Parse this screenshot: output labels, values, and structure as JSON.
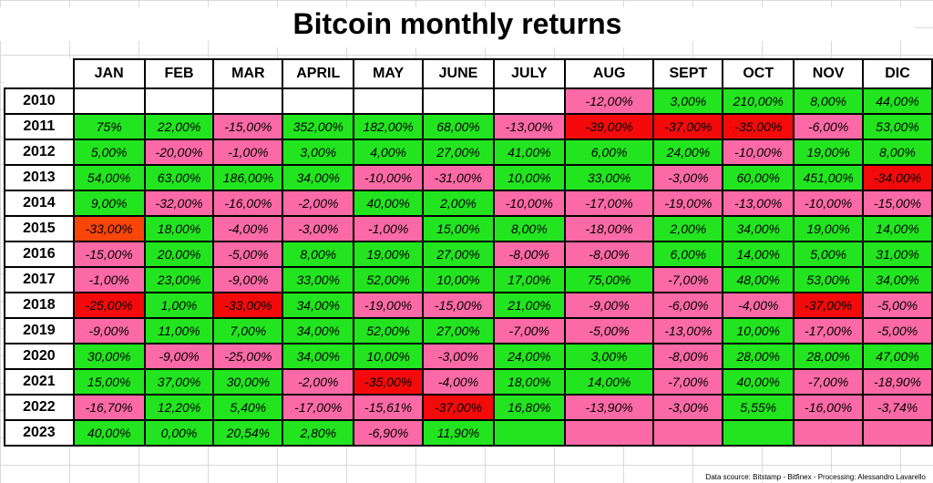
{
  "title": "Bitcoin monthly returns",
  "months": [
    "JAN",
    "FEB",
    "MAR",
    "APRIL",
    "MAY",
    "JUNE",
    "JULY",
    "AUG",
    "SEPT",
    "OCT",
    "NOV",
    "DIC"
  ],
  "colors": {
    "positive": "#22e51f",
    "negative": "#fb6aa6",
    "large_negative": "#f40a0a",
    "orange_negative": "#f8460b",
    "empty": "#ffffff"
  },
  "rows": [
    {
      "year": "2010",
      "values": [
        "",
        "",
        "",
        "",
        "",
        "",
        "",
        "-12,00%",
        "3,00%",
        "210,00%",
        "8,00%",
        "44,00%"
      ],
      "styles": [
        "emp",
        "emp",
        "emp",
        "emp",
        "emp",
        "emp",
        "emp",
        "neg",
        "pos",
        "pos",
        "pos",
        "pos"
      ]
    },
    {
      "year": "2011",
      "values": [
        "75%",
        "22,00%",
        "-15,00%",
        "352,00%",
        "182,00%",
        "68,00%",
        "-13,00%",
        "-39,00%",
        "-37,00%",
        "-35,00%",
        "-6,00%",
        "53,00%"
      ],
      "styles": [
        "pos",
        "pos",
        "neg",
        "pos",
        "pos",
        "pos",
        "neg",
        "big",
        "big",
        "big",
        "neg",
        "pos"
      ]
    },
    {
      "year": "2012",
      "values": [
        "5,00%",
        "-20,00%",
        "-1,00%",
        "3,00%",
        "4,00%",
        "27,00%",
        "41,00%",
        "6,00%",
        "24,00%",
        "-10,00%",
        "19,00%",
        "8,00%"
      ],
      "styles": [
        "pos",
        "neg",
        "neg",
        "pos",
        "pos",
        "pos",
        "pos",
        "pos",
        "pos",
        "neg",
        "pos",
        "pos"
      ]
    },
    {
      "year": "2013",
      "values": [
        "54,00%",
        "63,00%",
        "186,00%",
        "34,00%",
        "-10,00%",
        "-31,00%",
        "10,00%",
        "33,00%",
        "-3,00%",
        "60,00%",
        "451,00%",
        "-34,00%"
      ],
      "styles": [
        "pos",
        "pos",
        "pos",
        "pos",
        "neg",
        "neg",
        "pos",
        "pos",
        "neg",
        "pos",
        "pos",
        "big"
      ]
    },
    {
      "year": "2014",
      "values": [
        "9,00%",
        "-32,00%",
        "-16,00%",
        "-2,00%",
        "40,00%",
        "2,00%",
        "-10,00%",
        "-17,00%",
        "-19,00%",
        "-13,00%",
        "-10,00%",
        "-15,00%"
      ],
      "styles": [
        "pos",
        "neg",
        "neg",
        "neg",
        "pos",
        "pos",
        "neg",
        "neg",
        "neg",
        "neg",
        "neg",
        "neg"
      ]
    },
    {
      "year": "2015",
      "values": [
        "-33,00%",
        "18,00%",
        "-4,00%",
        "-3,00%",
        "-1,00%",
        "15,00%",
        "8,00%",
        "-18,00%",
        "2,00%",
        "34,00%",
        "19,00%",
        "14,00%"
      ],
      "styles": [
        "ora",
        "pos",
        "neg",
        "neg",
        "neg",
        "pos",
        "pos",
        "neg",
        "pos",
        "pos",
        "pos",
        "pos"
      ]
    },
    {
      "year": "2016",
      "values": [
        "-15,00%",
        "20,00%",
        "-5,00%",
        "8,00%",
        "19,00%",
        "27,00%",
        "-8,00%",
        "-8,00%",
        "6,00%",
        "14,00%",
        "5,00%",
        "31,00%"
      ],
      "styles": [
        "neg",
        "pos",
        "neg",
        "pos",
        "pos",
        "pos",
        "neg",
        "neg",
        "pos",
        "pos",
        "pos",
        "pos"
      ]
    },
    {
      "year": "2017",
      "values": [
        "-1,00%",
        "23,00%",
        "-9,00%",
        "33,00%",
        "52,00%",
        "10,00%",
        "17,00%",
        "75,00%",
        "-7,00%",
        "48,00%",
        "53,00%",
        "34,00%"
      ],
      "styles": [
        "neg",
        "pos",
        "neg",
        "pos",
        "pos",
        "pos",
        "pos",
        "pos",
        "neg",
        "pos",
        "pos",
        "pos"
      ]
    },
    {
      "year": "2018",
      "values": [
        "-25,00%",
        "1,00%",
        "-33,00%",
        "34,00%",
        "-19,00%",
        "-15,00%",
        "21,00%",
        "-9,00%",
        "-6,00%",
        "-4,00%",
        "-37,00%",
        "-5,00%"
      ],
      "styles": [
        "big",
        "pos",
        "big",
        "pos",
        "neg",
        "neg",
        "pos",
        "neg",
        "neg",
        "neg",
        "big",
        "neg"
      ]
    },
    {
      "year": "2019",
      "values": [
        "-9,00%",
        "11,00%",
        "7,00%",
        "34,00%",
        "52,00%",
        "27,00%",
        "-7,00%",
        "-5,00%",
        "-13,00%",
        "10,00%",
        "-17,00%",
        "-5,00%"
      ],
      "styles": [
        "neg",
        "pos",
        "pos",
        "pos",
        "pos",
        "pos",
        "neg",
        "neg",
        "neg",
        "pos",
        "neg",
        "neg"
      ]
    },
    {
      "year": "2020",
      "values": [
        "30,00%",
        "-9,00%",
        "-25,00%",
        "34,00%",
        "10,00%",
        "-3,00%",
        "24,00%",
        "3,00%",
        "-8,00%",
        "28,00%",
        "28,00%",
        "47,00%"
      ],
      "styles": [
        "pos",
        "neg",
        "neg",
        "pos",
        "pos",
        "neg",
        "pos",
        "pos",
        "neg",
        "pos",
        "pos",
        "pos"
      ]
    },
    {
      "year": "2021",
      "values": [
        "15,00%",
        "37,00%",
        "30,00%",
        "-2,00%",
        "-35,00%",
        "-4,00%",
        "18,00%",
        "14,00%",
        "-7,00%",
        "40,00%",
        "-7,00%",
        "-18,90%"
      ],
      "styles": [
        "pos",
        "pos",
        "pos",
        "neg",
        "big",
        "neg",
        "pos",
        "pos",
        "neg",
        "pos",
        "neg",
        "neg"
      ]
    },
    {
      "year": "2022",
      "values": [
        "-16,70%",
        "12,20%",
        "5,40%",
        "-17,00%",
        "-15,61%",
        "-37,00%",
        "16,80%",
        "-13,90%",
        "-3,00%",
        "5,55%",
        "-16,00%",
        "-3,74%"
      ],
      "styles": [
        "neg",
        "pos",
        "pos",
        "neg",
        "neg",
        "big",
        "pos",
        "neg",
        "neg",
        "pos",
        "neg",
        "neg"
      ]
    },
    {
      "year": "2023",
      "values": [
        "40,00%",
        "0,00%",
        "20,54%",
        "2,80%",
        "-6,90%",
        "11,90%",
        "",
        "",
        "",
        "",
        "",
        ""
      ],
      "styles": [
        "pos",
        "pos",
        "pos",
        "pos",
        "neg",
        "pos",
        "pos",
        "neg",
        "neg",
        "pos",
        "neg",
        "neg"
      ]
    }
  ],
  "source": "Data scource: Bitstamp - Bitfinex - Processing: Alessandro Lavarello"
}
